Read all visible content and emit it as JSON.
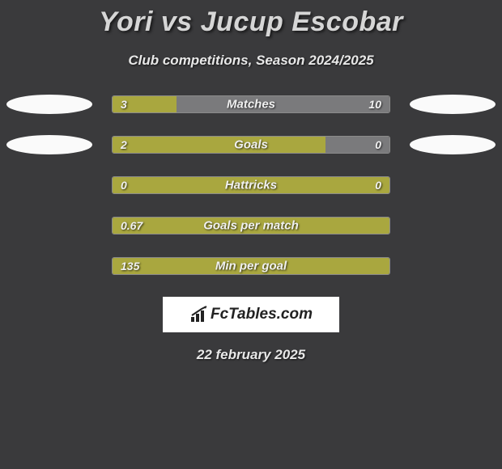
{
  "title": "Yori vs Jucup Escobar",
  "subtitle": "Club competitions, Season 2024/2025",
  "date": "22 february 2025",
  "logo_text": "FcTables.com",
  "colors": {
    "background": "#3a3a3c",
    "bar_green": "#a9a73f",
    "bar_grey": "#7a7a7c",
    "ellipse": "#fafafa",
    "text_light": "#e8e8e8"
  },
  "stats": [
    {
      "label": "Matches",
      "left_value": "3",
      "right_value": "10",
      "left_pct": 23,
      "right_pct": 77,
      "left_color": "#a9a73f",
      "right_color": "#7a7a7c",
      "show_ellipses": true
    },
    {
      "label": "Goals",
      "left_value": "2",
      "right_value": "0",
      "left_pct": 77,
      "right_pct": 23,
      "left_color": "#a9a73f",
      "right_color": "#7a7a7c",
      "show_ellipses": true
    },
    {
      "label": "Hattricks",
      "left_value": "0",
      "right_value": "0",
      "left_pct": 100,
      "right_pct": 0,
      "left_color": "#a9a73f",
      "right_color": "#7a7a7c",
      "show_ellipses": false
    },
    {
      "label": "Goals per match",
      "left_value": "0.67",
      "right_value": "",
      "left_pct": 100,
      "right_pct": 0,
      "left_color": "#a9a73f",
      "right_color": "#7a7a7c",
      "show_ellipses": false
    },
    {
      "label": "Min per goal",
      "left_value": "135",
      "right_value": "",
      "left_pct": 100,
      "right_pct": 0,
      "left_color": "#a9a73f",
      "right_color": "#7a7a7c",
      "show_ellipses": false
    }
  ]
}
